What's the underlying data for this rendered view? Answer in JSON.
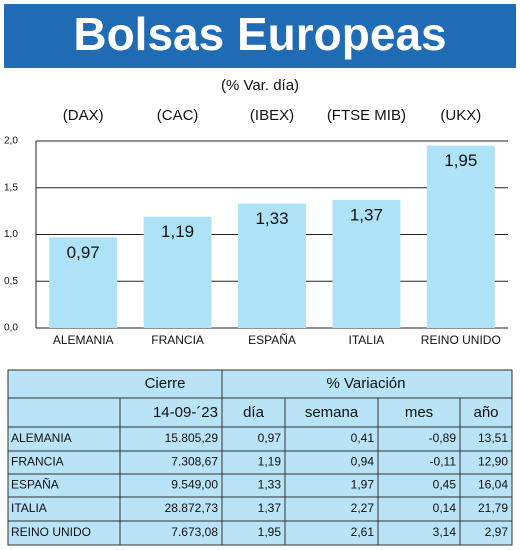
{
  "chart_data": {
    "type": "bar",
    "title": "Bolsas Europeas",
    "subtitle": "(% Var. día)",
    "index_labels": [
      "(DAX)",
      "(CAC)",
      "(IBEX)",
      "(FTSE MIB)",
      "(UKX)"
    ],
    "categories": [
      "ALEMANIA",
      "FRANCIA",
      "ESPAÑA",
      "ITALIA",
      "REINO UNIDO"
    ],
    "values": [
      0.97,
      1.19,
      1.33,
      1.37,
      1.95
    ],
    "value_labels": [
      "0,97",
      "1,19",
      "1,33",
      "1,37",
      "1,95"
    ],
    "color": "#aee3f7",
    "ylim": [
      0,
      2
    ],
    "yticks": [
      {
        "value": 0,
        "label": "0,0"
      },
      {
        "value": 0.5,
        "label": "0,5"
      },
      {
        "value": 1,
        "label": "1,0"
      },
      {
        "value": 1.5,
        "label": "1,5"
      },
      {
        "value": 2,
        "label": "2,0"
      }
    ],
    "grid": true
  },
  "table": {
    "header": [
      "Cierre",
      "% Variación"
    ],
    "subheader": [
      "14-09-´23",
      "día",
      "semana",
      "mes",
      "año"
    ],
    "rows": [
      [
        "ALEMANIA",
        "15.805,29",
        "0,97",
        "0,41",
        "-0,89",
        "13,51"
      ],
      [
        "FRANCIA",
        "7.308,67",
        "1,19",
        "0,94",
        "-0,11",
        "12,90"
      ],
      [
        "ESPAÑA",
        "9.549,00",
        "1,33",
        "1,97",
        "0,45",
        "16,04"
      ],
      [
        "ITALIA",
        "28.872,73",
        "1,37",
        "2,27",
        "0,14",
        "21,79"
      ],
      [
        "REINO UNIDO",
        "7.673,08",
        "1,95",
        "2,61",
        "3,14",
        "2,97"
      ]
    ]
  }
}
